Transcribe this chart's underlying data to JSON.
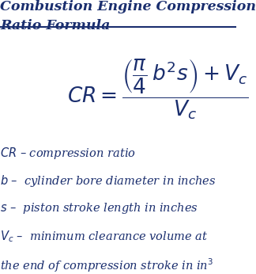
{
  "title_line1": "Combustion Engine Compression",
  "title_line2": "Ratio Formula",
  "formula": "$\\mathit{CR} = \\dfrac{\\left(\\dfrac{\\pi}{4}\\, b^2 s\\right) + V_c}{V_c}$",
  "descriptions": [
    "$\\mathit{CR}$ – compression ratio",
    "$\\mathit{b}$ –  cylinder bore diameter in inches",
    "$\\mathit{s}$ –  piston stroke length in inches",
    "$\\mathit{V_c}$ –  minimum clearance volume at",
    "the end of compression stroke in in$^3$"
  ],
  "text_color": "#1a2e6e",
  "bg_color": "#ffffff",
  "title_fontsize": 12.5,
  "formula_fontsize": 19,
  "desc_fontsize": 10.5
}
